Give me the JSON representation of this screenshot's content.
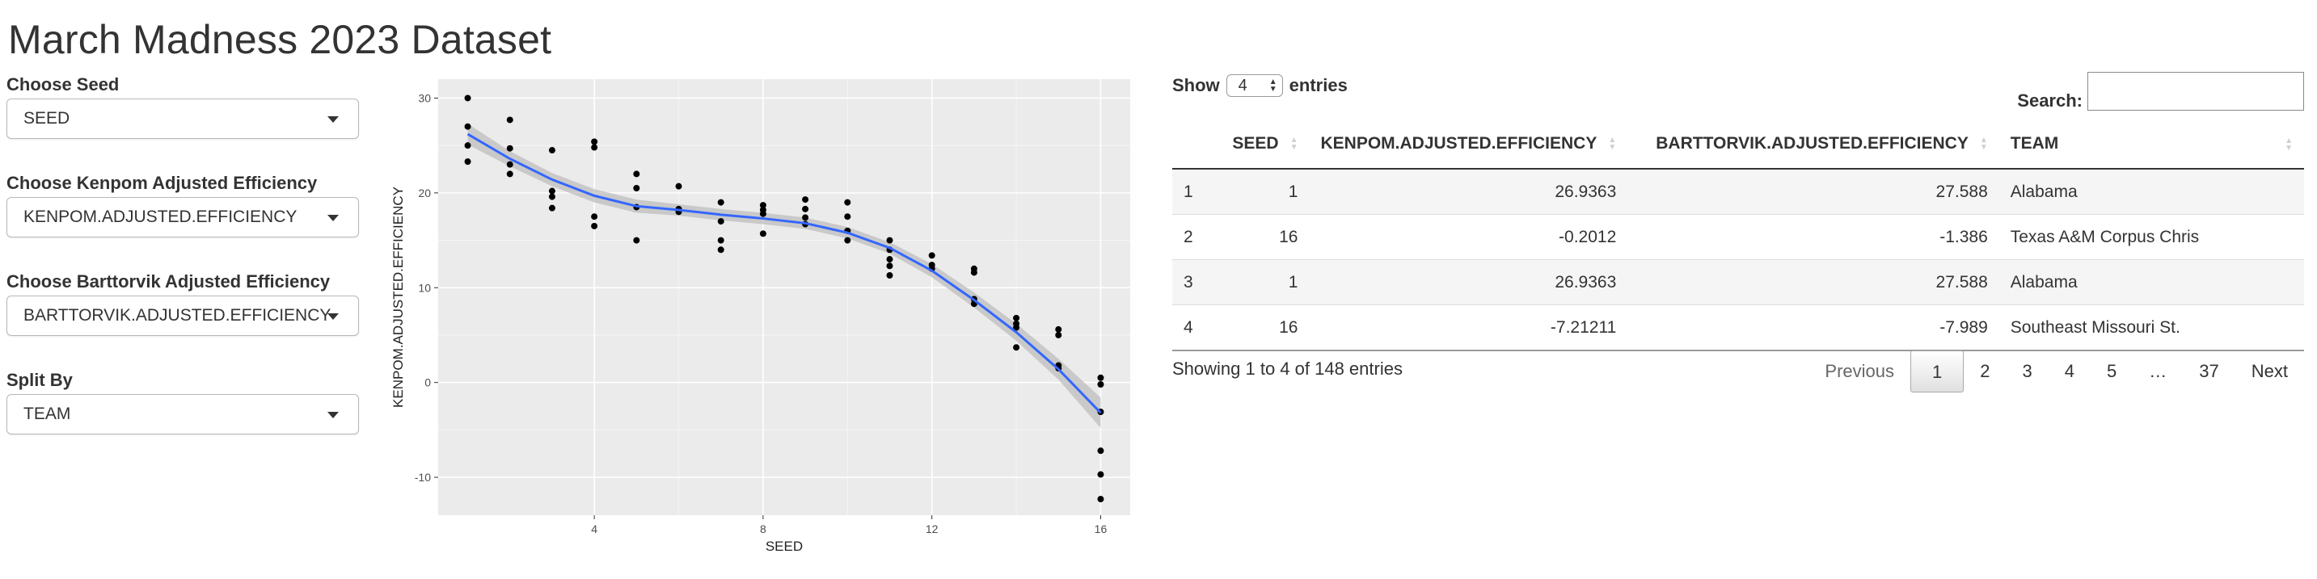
{
  "page": {
    "title": "March Madness 2023 Dataset"
  },
  "sidebar": {
    "controls": [
      {
        "label": "Choose Seed",
        "value": "SEED"
      },
      {
        "label": "Choose Kenpom Adjusted Efficiency",
        "value": "KENPOM.ADJUSTED.EFFICIENCY"
      },
      {
        "label": "Choose Barttorvik Adjusted Efficiency",
        "value": "BARTTORVIK.ADJUSTED.EFFICIENCY"
      },
      {
        "label": "Split By",
        "value": "TEAM"
      }
    ]
  },
  "colors": {
    "panel": "#EBEBEB",
    "grid": "#FFFFFF",
    "line": "#3366FF",
    "ribbon": "#BDBDBD",
    "point": "#000000"
  },
  "chart_data": {
    "type": "scatter",
    "xlabel": "SEED",
    "ylabel": "KENPOM.ADJUSTED.EFFICIENCY",
    "xlim": [
      0.3,
      16.7
    ],
    "ylim": [
      -14,
      32
    ],
    "x_ticks": [
      4,
      8,
      12,
      16
    ],
    "y_ticks": [
      -10,
      0,
      10,
      20,
      30
    ],
    "grid": true,
    "points": [
      [
        1,
        30
      ],
      [
        1,
        27
      ],
      [
        1,
        25
      ],
      [
        1,
        23.3
      ],
      [
        2,
        27.7
      ],
      [
        2,
        24.7
      ],
      [
        2,
        23
      ],
      [
        2,
        22
      ],
      [
        3,
        24.5
      ],
      [
        3,
        20.2
      ],
      [
        3,
        19.6
      ],
      [
        3,
        18.4
      ],
      [
        4,
        25.4
      ],
      [
        4,
        24.8
      ],
      [
        4,
        17.5
      ],
      [
        4,
        16.5
      ],
      [
        5,
        22
      ],
      [
        5,
        20.5
      ],
      [
        5,
        18.5
      ],
      [
        5,
        15
      ],
      [
        6,
        20.7
      ],
      [
        6,
        18.3
      ],
      [
        6,
        18
      ],
      [
        7,
        19
      ],
      [
        7,
        17
      ],
      [
        7,
        15
      ],
      [
        7,
        14
      ],
      [
        8,
        18.7
      ],
      [
        8,
        18.2
      ],
      [
        8,
        17.8
      ],
      [
        8,
        15.7
      ],
      [
        9,
        19.3
      ],
      [
        9,
        18.3
      ],
      [
        9,
        17.4
      ],
      [
        9,
        16.7
      ],
      [
        10,
        19
      ],
      [
        10,
        17.5
      ],
      [
        10,
        16
      ],
      [
        10,
        15
      ],
      [
        11,
        15
      ],
      [
        11,
        14
      ],
      [
        11,
        13
      ],
      [
        11,
        12.3
      ],
      [
        11,
        11.3
      ],
      [
        12,
        13.4
      ],
      [
        12,
        12.4
      ],
      [
        12,
        12
      ],
      [
        13,
        12
      ],
      [
        13,
        11.6
      ],
      [
        13,
        8.8
      ],
      [
        13,
        8.3
      ],
      [
        14,
        6.8
      ],
      [
        14,
        6.2
      ],
      [
        14,
        5.8
      ],
      [
        14,
        3.7
      ],
      [
        15,
        5.6
      ],
      [
        15,
        5
      ],
      [
        15,
        1.8
      ],
      [
        15,
        1.5
      ],
      [
        16,
        0.5
      ],
      [
        16,
        -0.2
      ],
      [
        16,
        -3.1
      ],
      [
        16,
        -7.2
      ],
      [
        16,
        -9.7
      ],
      [
        16,
        -12.3
      ]
    ],
    "smooth": {
      "x": [
        1,
        2,
        3,
        4,
        5,
        6,
        7,
        8,
        9,
        10,
        11,
        12,
        13,
        14,
        15,
        16
      ],
      "y": [
        26.2,
        23.6,
        21.4,
        19.7,
        18.6,
        18.2,
        17.7,
        17.3,
        16.8,
        15.8,
        14.2,
        11.8,
        8.7,
        5.3,
        1.4,
        -3.2
      ],
      "se": [
        1.1,
        0.8,
        0.7,
        0.7,
        0.7,
        0.6,
        0.6,
        0.6,
        0.6,
        0.6,
        0.6,
        0.7,
        0.8,
        0.9,
        1.1,
        1.6
      ]
    }
  },
  "table": {
    "length_prefix": "Show",
    "length_value": "4",
    "length_suffix": "entries",
    "search_label": "Search:",
    "columns": [
      "",
      "SEED",
      "KENPOM.ADJUSTED.EFFICIENCY",
      "BARTTORVIK.ADJUSTED.EFFICIENCY",
      "TEAM"
    ],
    "rows": [
      [
        "1",
        "1",
        "26.9363",
        "27.588",
        "Alabama"
      ],
      [
        "2",
        "16",
        "-0.2012",
        "-1.386",
        "Texas A&M Corpus Chris"
      ],
      [
        "3",
        "1",
        "26.9363",
        "27.588",
        "Alabama"
      ],
      [
        "4",
        "16",
        "-7.21211",
        "-7.989",
        "Southeast Missouri St."
      ]
    ],
    "info": "Showing 1 to 4 of 148 entries",
    "pagination": {
      "previous": "Previous",
      "pages": [
        "1",
        "2",
        "3",
        "4",
        "5",
        "…",
        "37"
      ],
      "active": "1",
      "next": "Next"
    }
  }
}
